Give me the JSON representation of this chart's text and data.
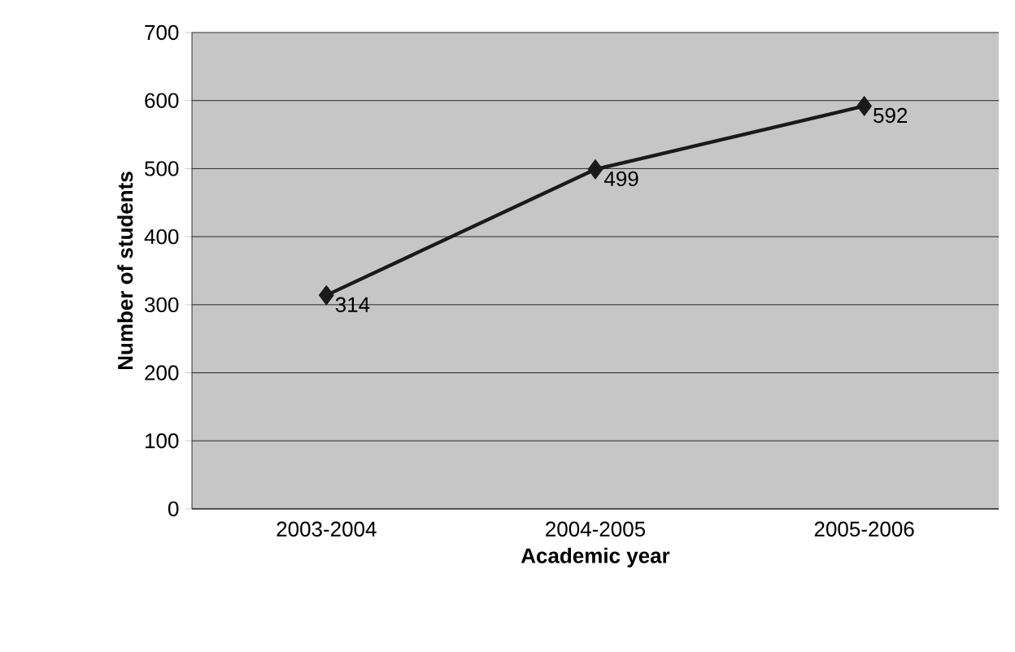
{
  "chart_data": {
    "type": "line",
    "xlabel": "Academic year",
    "ylabel": "Number of students",
    "categories": [
      "2003-2004",
      "2004-2005",
      "2005-2006"
    ],
    "values": [
      314,
      499,
      592
    ],
    "color": "#1a1a1a",
    "ylim": [
      0,
      700
    ],
    "yticks": [
      0,
      100,
      200,
      300,
      400,
      500,
      600,
      700
    ],
    "grid": "y",
    "marker": "diamond",
    "line_style": "solid",
    "data_labels": true
  }
}
